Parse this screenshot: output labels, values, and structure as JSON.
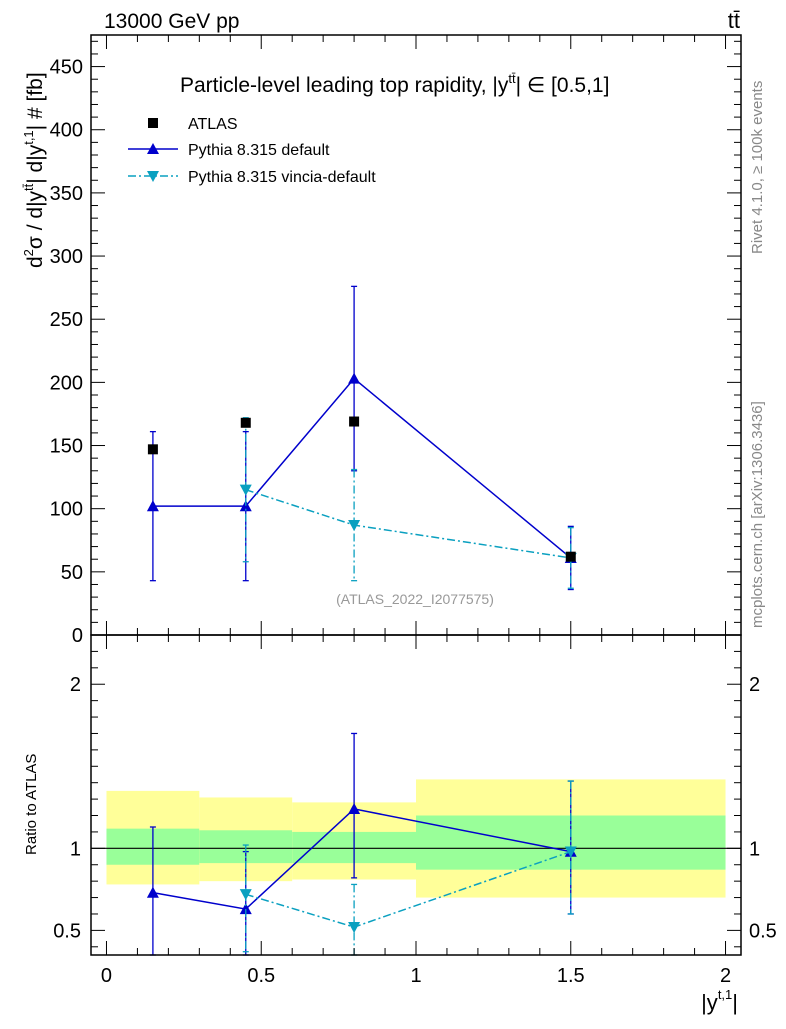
{
  "header": {
    "energy_label": "13000 GeV pp",
    "process_label": "tt̄"
  },
  "side_labels": {
    "rivet": "Rivet 4.1.0, ≥ 100k events",
    "mcplots": "mcplots.cern.ch [arXiv:1306.3436]"
  },
  "chart_data": [
    {
      "type": "scatter",
      "panel": "main",
      "title": "Particle-level leading top rapidity, |y^tt̄| ∈ [0.5,1]",
      "title_parts": {
        "pre": "Particle-level leading top rapidity, |y",
        "sup": "tt̄",
        "post": "| ∈ [0.5,1]"
      },
      "ylabel": "d²σ / d|y^tt̄| d|y^t,1| # [fb]",
      "ylabel_parts": {
        "a": "d",
        "a_sup": "2",
        "b": "σ / d|y",
        "b_sup": "tt̄",
        "c": "| d|y",
        "c_sup": "t,1",
        "d": "| # [fb]"
      },
      "watermark": "(ATLAS_2022_I2077575)",
      "xlim": [
        -0.05,
        2.05
      ],
      "ylim": [
        0,
        475
      ],
      "yticks": [
        0,
        50,
        100,
        150,
        200,
        250,
        300,
        350,
        400,
        450
      ],
      "ytick_labels": [
        "0",
        "50",
        "100",
        "150",
        "200",
        "250",
        "300",
        "350",
        "400",
        "450"
      ],
      "legend_position": "top-left",
      "series": [
        {
          "name": "ATLAS",
          "marker": "square",
          "color": "#000000",
          "x": [
            0.15,
            0.45,
            0.8,
            1.5
          ],
          "xbins": [
            [
              0.0,
              0.3
            ],
            [
              0.3,
              0.6
            ],
            [
              0.6,
              1.0
            ],
            [
              1.0,
              2.0
            ]
          ],
          "y": [
            147,
            168,
            169,
            62
          ]
        },
        {
          "name": "Pythia 8.315 default",
          "marker": "triangle-up",
          "color": "#0000cc",
          "dash": "solid",
          "x": [
            0.15,
            0.45,
            0.8,
            1.5
          ],
          "y": [
            102,
            102,
            203,
            61
          ],
          "err_low": [
            59,
            59,
            73,
            25
          ],
          "err_high": [
            59,
            59,
            73,
            25
          ]
        },
        {
          "name": "Pythia 8.315 vincia-default",
          "marker": "triangle-down",
          "color": "#0aa0c0",
          "dash": "dashdot",
          "x": [
            0.15,
            0.45,
            0.8,
            1.5
          ],
          "y": [
            null,
            115,
            87,
            61
          ],
          "err_low": [
            null,
            57,
            44,
            24
          ],
          "err_high": [
            null,
            57,
            44,
            24
          ]
        }
      ]
    },
    {
      "type": "scatter",
      "panel": "ratio",
      "ylabel": "Ratio to ATLAS",
      "xlabel": "|y^t,1|",
      "xlabel_parts": {
        "base": "|y",
        "sup": "t,1",
        "post": "|"
      },
      "xlim": [
        -0.05,
        2.05
      ],
      "ylim": [
        0.35,
        2.3
      ],
      "xticks": [
        0,
        0.5,
        1,
        1.5,
        2
      ],
      "xtick_labels": [
        "0",
        "0.5",
        "1",
        "1.5",
        "2"
      ],
      "yticks": [
        0.5,
        1,
        2
      ],
      "ytick_labels": [
        "0.5",
        "1",
        "2"
      ],
      "reference_line": 1,
      "bands": [
        {
          "x0": 0.0,
          "x1": 0.3,
          "inner": [
            0.9,
            1.12
          ],
          "outer": [
            0.78,
            1.35
          ]
        },
        {
          "x0": 0.3,
          "x1": 0.6,
          "inner": [
            0.91,
            1.11
          ],
          "outer": [
            0.8,
            1.31
          ]
        },
        {
          "x0": 0.6,
          "x1": 1.0,
          "inner": [
            0.91,
            1.1
          ],
          "outer": [
            0.81,
            1.28
          ]
        },
        {
          "x0": 1.0,
          "x1": 2.0,
          "inner": [
            0.87,
            1.2
          ],
          "outer": [
            0.7,
            1.42
          ]
        }
      ],
      "series": [
        {
          "name": "Pythia 8.315 default",
          "color": "#0000cc",
          "dash": "solid",
          "marker": "triangle-up",
          "x": [
            0.15,
            0.45,
            0.8,
            1.5
          ],
          "y": [
            0.73,
            0.63,
            1.24,
            0.98
          ],
          "err_low": [
            0.4,
            0.35,
            0.42,
            0.38
          ],
          "err_high": [
            0.4,
            0.35,
            0.46,
            0.43
          ]
        },
        {
          "name": "Pythia 8.315 vincia-default",
          "color": "#0aa0c0",
          "dash": "dashdot",
          "marker": "triangle-down",
          "x": [
            0.15,
            0.45,
            0.8,
            1.5
          ],
          "y": [
            null,
            0.72,
            0.52,
            0.98
          ],
          "err_low": [
            null,
            0.35,
            0.26,
            0.38
          ],
          "err_high": [
            null,
            0.3,
            0.26,
            0.43
          ]
        }
      ]
    }
  ]
}
